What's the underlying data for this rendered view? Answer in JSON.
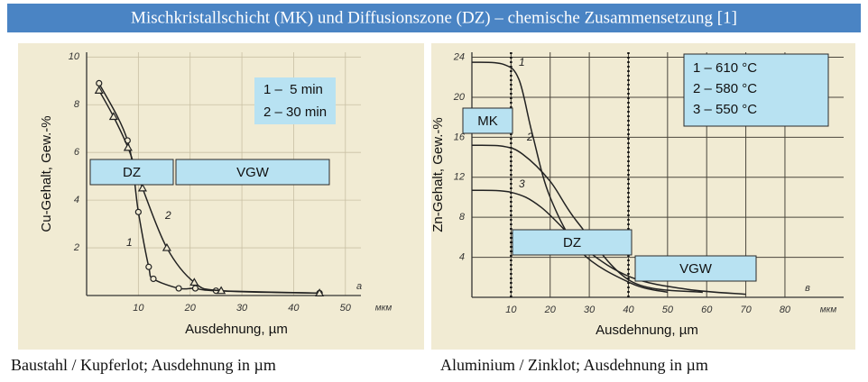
{
  "title": "Mischkristallschicht (MK) und Diffusionszone (DZ) – chemische Zusammensetzung [1]",
  "captions": [
    "Baustahl / Kupferlot; Ausdehnung in µm",
    "Aluminium / Zinklot; Ausdehnung in µm"
  ],
  "chart_data": [
    {
      "type": "line",
      "x_label": "Ausdehnung, µm",
      "y_label": "Cu-Gehalt, Gew.-%",
      "x_unit": "мкм",
      "panel_letter": "a",
      "legend_text": [
        "1 –  5 min",
        "2 – 30 min"
      ],
      "annotations": [
        "DZ",
        "VGW"
      ],
      "xlim": [
        0,
        53
      ],
      "ylim": [
        0,
        10.2
      ],
      "xticks": [
        10,
        20,
        30,
        40,
        50
      ],
      "yticks": [
        2,
        4,
        6,
        8,
        10
      ],
      "grid": true,
      "series": [
        {
          "name": "1",
          "color": "#222222",
          "marker": "circle",
          "x": [
            2.4,
            7.9,
            10,
            12,
            12.9,
            17.8,
            21,
            25,
            45
          ],
          "values": [
            8.9,
            6.5,
            3.5,
            1.2,
            0.7,
            0.3,
            0.3,
            0.2,
            0.1
          ]
        },
        {
          "name": "2",
          "color": "#222222",
          "marker": "triangle",
          "x": [
            2.4,
            5.2,
            8,
            10.8,
            15.5,
            20.8,
            26,
            45
          ],
          "values": [
            8.6,
            7.5,
            6.2,
            4.5,
            2.0,
            0.55,
            0.2,
            0.1
          ]
        }
      ]
    },
    {
      "type": "line",
      "x_label": "Ausdehnung, µm",
      "y_label": "Zn-Gehalt, Gew.-%",
      "x_unit": "мкм",
      "panel_letter": "в",
      "legend_text": [
        "1 – 610 °C",
        "2 – 580 °C",
        "3 – 550 °C"
      ],
      "annotations": [
        "MK",
        "DZ",
        "VGW"
      ],
      "xlim": [
        0,
        95
      ],
      "ylim": [
        0,
        24.5
      ],
      "xticks": [
        10,
        20,
        30,
        40,
        50,
        60,
        70,
        80
      ],
      "yticks": [
        4,
        8,
        12,
        16,
        20,
        24
      ],
      "grid": true,
      "vlines": [
        10,
        40
      ],
      "series": [
        {
          "name": "1",
          "color": "#222222",
          "x": [
            0,
            10,
            17.7,
            29,
            40.7,
            55,
            70
          ],
          "values": [
            10.7,
            10.5,
            9,
            4.8,
            2,
            0.8,
            0.3
          ]
        },
        {
          "name": "2",
          "color": "#222222",
          "x": [
            0,
            8,
            13,
            20,
            27,
            40.7,
            59
          ],
          "values": [
            15.2,
            15.1,
            14.3,
            11.6,
            7.5,
            1.6,
            0.5
          ]
        },
        {
          "name": "3",
          "color": "#222222",
          "x": [
            0,
            8,
            12,
            15.4,
            20,
            28,
            40.7,
            50
          ],
          "values": [
            23.5,
            23.3,
            21.8,
            16.4,
            10,
            4.5,
            1.4,
            0.5
          ]
        }
      ]
    }
  ]
}
